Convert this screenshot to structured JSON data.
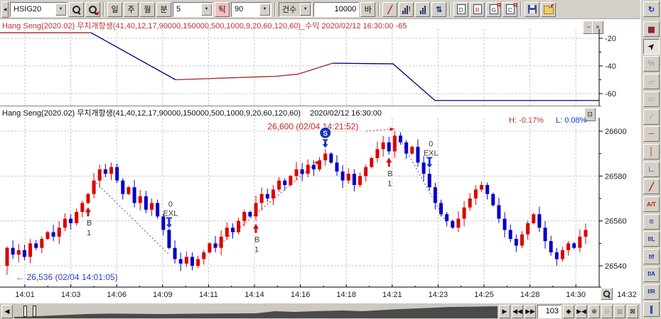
{
  "ui": {
    "dropdown_arrow": "▼",
    "minimize": "−",
    "close": "×",
    "restore": "⊡",
    "collapse_arrow": "◀",
    "scroll_left": "◀"
  },
  "colors": {
    "up_candle": "#dd0000",
    "down_candle": "#0000c8",
    "profit_red": "#aa2222",
    "profit_blue": "#000080",
    "grid": "#c9c9c9",
    "header_red": "#c03030"
  },
  "toolbar": {
    "symbol_value": "HSIG20",
    "period_buttons": [
      {
        "name": "period-day-button",
        "label": "일"
      },
      {
        "name": "period-week-button",
        "label": "주"
      },
      {
        "name": "period-month-button",
        "label": "월"
      },
      {
        "name": "period-minute-button",
        "label": "분"
      }
    ],
    "minute_interval_value": "5",
    "tick_button_label": "틱",
    "tick_interval_value": "90",
    "count_dropdown_label": "건수",
    "count_value": "10000",
    "bar_button_label": "바",
    "icon_buttons": [
      {
        "name": "signal-line-button",
        "type": "glyph",
        "glyph": "╱",
        "color": "#cc1111"
      },
      {
        "name": "recalc-signal-button",
        "type": "bars",
        "alert": true
      },
      {
        "name": "volume-bars-button",
        "type": "bars",
        "alert": false
      },
      {
        "name": "sort-updown-button",
        "type": "glyph",
        "glyph": "⇅",
        "color": "#113a8a"
      },
      {
        "name": "new-chart-button",
        "type": "doc",
        "letter": "D",
        "color": "#223355",
        "sup": ""
      },
      {
        "name": "refresh-chart-button",
        "type": "doc",
        "letter": "R",
        "color": "#cc1111",
        "sup": ""
      },
      {
        "name": "new-group-window-button",
        "type": "doc",
        "letter": "G",
        "color": "#223355",
        "sup": "R"
      },
      {
        "name": "clone-window-button",
        "type": "doc",
        "letter": "C",
        "color": "#223355",
        "sup": "R"
      },
      {
        "name": "save-chart-button",
        "type": "floppy"
      },
      {
        "name": "load-chart-button",
        "type": "folder"
      }
    ]
  },
  "upper_panel": {
    "title": "Hang Seng(2020.02) 무지개항생(41,40,12,17,90000,150000,500,1000,9,20,60,120,60)_수익 2020/02/12 16:30:00 -65"
  },
  "main_panel": {
    "title": "Hang Seng(2020.02) 무지개항생(41,40,12,17,90000,150000,500,1000,9,20,60,120,60)",
    "datetime": "2020/02/12 16:30:00",
    "high_pct_label": "H: -0.17%",
    "low_pct_label": "L: 0.08%"
  },
  "chart_data": [
    {
      "type": "line",
      "name": "수익(profit) indicator",
      "y_ticks": [
        -20,
        -40,
        -60
      ],
      "ylim": [
        -72,
        -12
      ],
      "last_value": -65,
      "segments": [
        {
          "color": "#aa2222",
          "points": [
            [
              0,
              -16
            ],
            [
              0.152,
              -16
            ]
          ]
        },
        {
          "color": "#000080",
          "points": [
            [
              0.152,
              -16
            ],
            [
              0.293,
              -50
            ]
          ]
        },
        {
          "color": "#aa2222",
          "points": [
            [
              0.293,
              -50
            ],
            [
              0.46,
              -47.5
            ],
            [
              0.497,
              -46
            ],
            [
              0.555,
              -38
            ]
          ]
        },
        {
          "color": "#000080",
          "points": [
            [
              0.555,
              -38
            ],
            [
              0.656,
              -38.5
            ],
            [
              0.726,
              -65
            ],
            [
              1,
              -65
            ]
          ]
        }
      ]
    },
    {
      "type": "candlestick",
      "symbol": "Hang Seng(2020.02)",
      "x_labels": [
        "14:01",
        "14:03",
        "14:06",
        "14:09",
        "14:11",
        "14:14",
        "14:16",
        "14:18",
        "14:21",
        "14:23",
        "14:25",
        "14:28",
        "14:30"
      ],
      "x_end_label": "14:32",
      "y_ticks": [
        26600,
        26580,
        26560,
        26540
      ],
      "ylim": [
        26530,
        26605
      ],
      "open_first": 26540,
      "closes": [
        26548,
        26545,
        26547,
        26544,
        26550,
        26548,
        26552,
        26555,
        26553,
        26557,
        26561,
        26559,
        26564,
        26568,
        26572,
        26578,
        26583,
        26581,
        26584,
        26578,
        26572,
        26575,
        26568,
        26571,
        26565,
        26568,
        26562,
        26556,
        26548,
        26543,
        26541,
        26544,
        26540,
        26543,
        26546,
        26550,
        26548,
        26553,
        26557,
        26555,
        26560,
        26564,
        26562,
        26568,
        26572,
        26570,
        26574,
        26578,
        26576,
        26580,
        26583,
        26581,
        26585,
        26583,
        26587,
        26590,
        26586,
        26582,
        26578,
        26581,
        26576,
        26580,
        26584,
        26588,
        26592,
        26595,
        26591,
        26598,
        26595,
        26590,
        26593,
        26586,
        26581,
        26575,
        26568,
        26563,
        26560,
        26557,
        26561,
        26566,
        26570,
        26574,
        26576,
        26572,
        26567,
        26561,
        26556,
        26552,
        26549,
        26554,
        26559,
        26563,
        26557,
        26551,
        26546,
        26543,
        26547,
        26550,
        26548,
        26553,
        26556
      ],
      "special_high": {
        "16": 26585,
        "55": 26592,
        "67": 26600
      },
      "special_low": {
        "0": 26536,
        "32": 26538
      },
      "markers": [
        {
          "type": "buy",
          "bar": 14,
          "labels": [
            "B",
            "1"
          ]
        },
        {
          "type": "exit",
          "bar": 28,
          "labels": [
            "0",
            "EXL"
          ]
        },
        {
          "type": "buy",
          "bar": 43,
          "labels": [
            "B",
            "1"
          ]
        },
        {
          "type": "sell",
          "bar": 55,
          "label": "S"
        },
        {
          "type": "buy",
          "bar": 66,
          "labels": [
            "B",
            "1"
          ]
        },
        {
          "type": "exit",
          "bar": 73,
          "labels": [
            "0",
            "EXL"
          ]
        }
      ],
      "dashed_lines": [
        {
          "color": "#4444bb",
          "from_bar": 15,
          "from_price": 26578,
          "to_bar": 28,
          "to_price": 26545,
          "arrow": false
        },
        {
          "color": "#cc2222",
          "from_bar": 36,
          "from_price": 26548,
          "to_bar": 54,
          "to_price": 26587,
          "arrow": true
        },
        {
          "color": "#cc2222",
          "from_bar": 62,
          "from_price": 26600,
          "to_bar": 67,
          "to_price": 26601,
          "arrow": true
        },
        {
          "color": "#4444bb",
          "from_bar": 68,
          "from_price": 26596,
          "to_bar": 76,
          "to_price": 26559,
          "arrow": false
        }
      ],
      "high_annotation": {
        "text": "26,600 (02/04 14:21:52)",
        "bar": 45,
        "price": 26602,
        "color": "#cc2222"
      },
      "low_annotation": {
        "arrow": "←",
        "text": "26,536 (02/04 14:01:05)",
        "bar": 1,
        "price": 26535,
        "color": "#3344bb"
      }
    }
  ],
  "sidebar": {
    "tools": [
      {
        "name": "refresh-icon",
        "glyph": "↻",
        "color": "#1133cc",
        "state": "normal"
      },
      {
        "name": "chart-pattern-icon",
        "glyph": "▦",
        "color": "#8a1122",
        "state": "normal"
      },
      {
        "name": "cursor-icon",
        "glyph": "➤",
        "color": "#111111",
        "state": "active"
      },
      {
        "name": "percent-measure-icon",
        "glyph": "%",
        "color": "#999999",
        "state": "disabled"
      },
      {
        "name": "eraser-icon",
        "glyph": "▱",
        "color": "#999999",
        "state": "disabled"
      },
      {
        "name": "erase-all-icon",
        "glyph": "▱",
        "color": "#999999",
        "state": "disabled"
      },
      {
        "name": "edit-line-icon",
        "glyph": "∕",
        "color": "#999999",
        "state": "disabled"
      },
      {
        "name": "horizontal-line-icon",
        "glyph": "─",
        "color": "#cc1111",
        "state": "normal"
      },
      {
        "name": "vertical-line-icon",
        "glyph": "│",
        "color": "#cc1111",
        "state": "normal"
      },
      {
        "name": "angle-line-icon",
        "glyph": "∟",
        "color": "#1133aa",
        "state": "normal"
      },
      {
        "name": "trend-line-icon",
        "glyph": "╱",
        "color": "#cc1111",
        "state": "normal"
      },
      {
        "name": "text-tool-icon",
        "glyph": "A/T",
        "color": "#cc1111",
        "state": "normal"
      },
      {
        "name": "fibo-lines-icon",
        "glyph": "≡",
        "color": "#1133aa",
        "state": "normal"
      },
      {
        "name": "fibo-timezone-icon",
        "glyph": "f/L",
        "color": "#1133aa",
        "state": "normal"
      },
      {
        "name": "fibo-wave-icon",
        "glyph": "f/f",
        "color": "#1133aa",
        "state": "normal"
      },
      {
        "name": "fibo-fan-icon",
        "glyph": "f/A",
        "color": "#1133aa",
        "state": "normal"
      },
      {
        "name": "fibo-retrace-icon",
        "glyph": "f/R",
        "color": "#1133aa",
        "state": "normal"
      },
      {
        "name": "parallel-lines-icon",
        "glyph": "∥",
        "color": "#1133aa",
        "state": "normal"
      }
    ]
  },
  "bottom": {
    "bar_count": "103",
    "nav_buttons": [
      {
        "name": "scroll-right-button",
        "glyph": "▶",
        "disabled": false
      },
      {
        "name": "fast-back-button",
        "glyph": "◀◀",
        "disabled": false
      },
      {
        "name": "fast-forward-button",
        "glyph": "▶▶",
        "disabled": false
      }
    ],
    "zoom_buttons": [
      {
        "name": "range-expand-button",
        "glyph": "◆",
        "disabled": false
      },
      {
        "name": "range-end-button",
        "glyph": "▶◀",
        "disabled": false
      },
      {
        "name": "zoom-in-button",
        "glyph": "⊕",
        "disabled": false
      },
      {
        "name": "zoom-out-button",
        "glyph": "⊖",
        "disabled": true
      },
      {
        "name": "grid-toggle-button",
        "glyph": "▦",
        "disabled": true
      },
      {
        "name": "close-chart-button",
        "glyph": "⊠",
        "disabled": false
      }
    ],
    "navigator_profile": [
      [
        0,
        0.1
      ],
      [
        0.03,
        0.12
      ],
      [
        0.08,
        0.2
      ],
      [
        0.15,
        0.3
      ],
      [
        0.2,
        0.33
      ],
      [
        0.3,
        0.3
      ],
      [
        0.4,
        0.33
      ],
      [
        0.5,
        0.35
      ],
      [
        0.54,
        0.5
      ],
      [
        0.58,
        0.45
      ],
      [
        0.62,
        0.5
      ],
      [
        0.68,
        0.55
      ],
      [
        0.72,
        0.5
      ],
      [
        0.78,
        0.62
      ],
      [
        0.85,
        0.72
      ],
      [
        0.9,
        0.8
      ],
      [
        0.95,
        0.82
      ],
      [
        1,
        0.85
      ]
    ]
  }
}
